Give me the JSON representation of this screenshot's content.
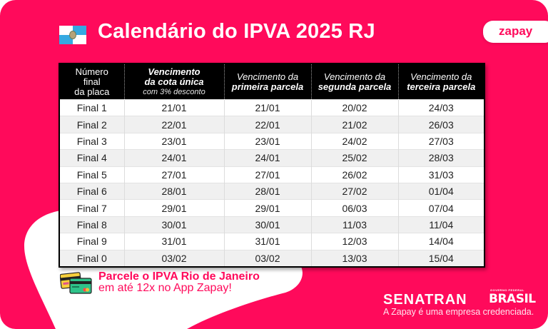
{
  "header": {
    "flag_icon": "rio-de-janeiro-flag-icon",
    "title": "Calendário do IPVA 2025 RJ",
    "brand": "zapay"
  },
  "colors": {
    "brand_pink": "#ff0a5b",
    "header_bg": "#000000",
    "row_alt": "#f0f0f0"
  },
  "table": {
    "headers": [
      {
        "lines": [
          "Número",
          "final",
          "da placa"
        ]
      },
      {
        "lines": [
          "Vencimento",
          "da cota única",
          "com 3% desconto"
        ]
      },
      {
        "lines": [
          "Vencimento da",
          "primeira parcela"
        ]
      },
      {
        "lines": [
          "Vencimento da",
          "segunda parcela"
        ]
      },
      {
        "lines": [
          "Vencimento da",
          "terceira parcela"
        ]
      }
    ],
    "rows": [
      [
        "Final 1",
        "21/01",
        "21/01",
        "20/02",
        "24/03"
      ],
      [
        "Final 2",
        "22/01",
        "22/01",
        "21/02",
        "26/03"
      ],
      [
        "Final 3",
        "23/01",
        "23/01",
        "24/02",
        "27/03"
      ],
      [
        "Final 4",
        "24/01",
        "24/01",
        "25/02",
        "28/03"
      ],
      [
        "Final 5",
        "27/01",
        "27/01",
        "26/02",
        "31/03"
      ],
      [
        "Final 6",
        "28/01",
        "28/01",
        "27/02",
        "01/04"
      ],
      [
        "Final 7",
        "29/01",
        "29/01",
        "06/03",
        "07/04"
      ],
      [
        "Final 8",
        "30/01",
        "30/01",
        "11/03",
        "11/04"
      ],
      [
        "Final 9",
        "31/01",
        "31/01",
        "12/03",
        "14/04"
      ],
      [
        "Final 0",
        "03/02",
        "03/02",
        "13/03",
        "15/04"
      ]
    ]
  },
  "promo": {
    "icon": "credit-cards-icon",
    "line1": "Parcele o IPVA Rio de Janeiro",
    "line2": "em até 12x no App Zapay!"
  },
  "footer": {
    "senatran": "SENATRAN",
    "gov_top": "GOVERNO FEDERAL",
    "gov_main": "BRASIL",
    "credit": "A Zapay é uma empresa credenciada."
  }
}
